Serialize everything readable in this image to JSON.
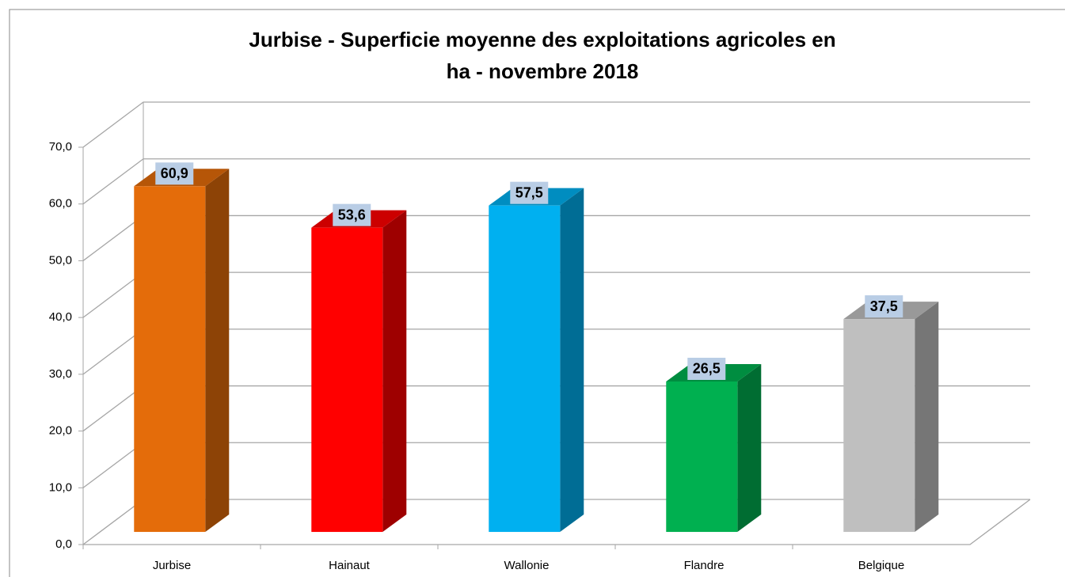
{
  "chart_data": {
    "type": "bar3d",
    "title": "Jurbise - Superficie moyenne des exploitations agricoles en ha - novembre 2018",
    "categories": [
      "Jurbise",
      "Hainaut",
      "Wallonie",
      "Flandre",
      "Belgique"
    ],
    "values": [
      60.9,
      53.6,
      57.5,
      26.5,
      37.5
    ],
    "value_labels": [
      "60,9",
      "53,6",
      "57,5",
      "26,5",
      "37,5"
    ],
    "colors": [
      "#e46c0a",
      "#ff0000",
      "#00b0f0",
      "#00b050",
      "#bfbfbf"
    ],
    "ylim": [
      0,
      70
    ],
    "yticks": [
      {
        "value": 0,
        "label": "0,0"
      },
      {
        "value": 10,
        "label": "10,0"
      },
      {
        "value": 20,
        "label": "20,0"
      },
      {
        "value": 30,
        "label": "30,0"
      },
      {
        "value": 40,
        "label": "40,0"
      },
      {
        "value": 50,
        "label": "50,0"
      },
      {
        "value": 60,
        "label": "60,0"
      },
      {
        "value": 70,
        "label": "70,0"
      }
    ],
    "grid": true
  }
}
